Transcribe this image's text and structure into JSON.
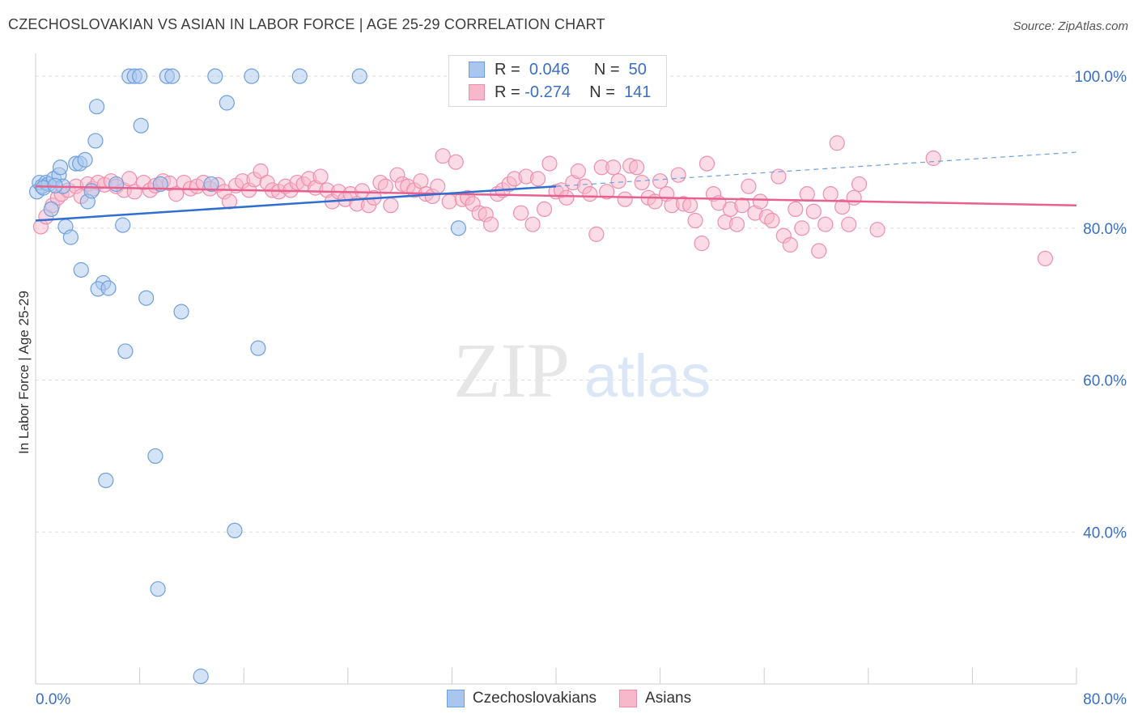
{
  "title": "CZECHOSLOVAKIAN VS ASIAN IN LABOR FORCE | AGE 25-29 CORRELATION CHART",
  "source": "Source: ZipAtlas.com",
  "watermark": {
    "zip": "ZIP",
    "atlas": "atlas"
  },
  "legend_top": [
    {
      "r_label": "R =",
      "r_value": "0.046",
      "n_label": "N =",
      "n_value": "50"
    },
    {
      "r_label": "R =",
      "r_value": "-0.274",
      "n_label": "N =",
      "n_value": "141"
    }
  ],
  "legend_bottom": [
    {
      "label": "Czechoslovakians"
    },
    {
      "label": "Asians"
    }
  ],
  "colors": {
    "czech_fill": "#a9c7ee",
    "czech_stroke": "#6f9fdc",
    "czech_line": "#2f6fd0",
    "asian_fill": "#f7b8cb",
    "asian_stroke": "#ee8fad",
    "asian_line": "#e8608e",
    "tick_text": "#3a6fc4",
    "grid": "#dddddd"
  },
  "chart_data": {
    "type": "scatter",
    "title": "CZECHOSLOVAKIAN VS ASIAN IN LABOR FORCE | AGE 25-29 CORRELATION CHART",
    "xlabel": "",
    "ylabel": "In Labor Force | Age 25-29",
    "xlim": [
      0,
      80
    ],
    "ylim": [
      20,
      103
    ],
    "x_tick_labels": [
      "0.0%",
      "80.0%"
    ],
    "y_tick_labels": [
      "100.0%",
      "80.0%",
      "60.0%",
      "40.0%"
    ],
    "y_ticks": [
      100,
      80,
      60,
      40
    ],
    "grid": true,
    "legend_placement": "top-center",
    "series": [
      {
        "name": "Czechoslovakians",
        "R": 0.046,
        "N": 50,
        "trend": {
          "x": [
            0,
            40
          ],
          "y": [
            81.0,
            85.5
          ]
        },
        "trend_dashed": {
          "x": [
            40,
            80
          ],
          "y": [
            85.5,
            90.0
          ]
        },
        "points": [
          [
            0.1,
            84.8
          ],
          [
            0.3,
            86.0
          ],
          [
            0.5,
            85.5
          ],
          [
            0.8,
            86.0
          ],
          [
            1.0,
            85.8
          ],
          [
            1.2,
            82.5
          ],
          [
            1.4,
            86.5
          ],
          [
            1.8,
            87.0
          ],
          [
            1.9,
            88.0
          ],
          [
            2.3,
            80.2
          ],
          [
            2.7,
            78.8
          ],
          [
            3.1,
            88.5
          ],
          [
            3.4,
            88.5
          ],
          [
            3.8,
            89.0
          ],
          [
            3.5,
            74.5
          ],
          [
            4.0,
            83.5
          ],
          [
            4.3,
            84.9
          ],
          [
            4.6,
            91.5
          ],
          [
            4.7,
            96.0
          ],
          [
            5.2,
            72.8
          ],
          [
            4.8,
            72.0
          ],
          [
            5.6,
            72.1
          ],
          [
            6.2,
            85.8
          ],
          [
            6.7,
            80.4
          ],
          [
            6.9,
            63.8
          ],
          [
            7.2,
            100.0
          ],
          [
            7.6,
            100.0
          ],
          [
            8.0,
            100.0
          ],
          [
            8.1,
            93.5
          ],
          [
            8.5,
            70.8
          ],
          [
            9.2,
            50.0
          ],
          [
            9.4,
            32.5
          ],
          [
            9.6,
            85.8
          ],
          [
            10.1,
            100.0
          ],
          [
            10.5,
            100.0
          ],
          [
            11.2,
            69.0
          ],
          [
            12.7,
            21.0
          ],
          [
            13.5,
            85.8
          ],
          [
            13.8,
            100.0
          ],
          [
            14.7,
            96.5
          ],
          [
            15.3,
            40.2
          ],
          [
            16.6,
            100.0
          ],
          [
            17.1,
            64.2
          ],
          [
            20.3,
            100.0
          ],
          [
            24.9,
            100.0
          ],
          [
            32.5,
            80.0
          ],
          [
            5.4,
            46.8
          ],
          [
            2.1,
            85.5
          ],
          [
            0.6,
            85.3
          ],
          [
            1.5,
            85.6
          ]
        ]
      },
      {
        "name": "Asians",
        "R": -0.274,
        "N": 141,
        "trend": {
          "x": [
            0,
            80
          ],
          "y": [
            85.5,
            83.0
          ]
        },
        "points": [
          [
            0.4,
            80.2
          ],
          [
            0.8,
            81.5
          ],
          [
            1.3,
            83.0
          ],
          [
            1.7,
            84.0
          ],
          [
            2.0,
            84.5
          ],
          [
            2.5,
            85.0
          ],
          [
            3.1,
            85.5
          ],
          [
            3.5,
            84.2
          ],
          [
            4.0,
            85.8
          ],
          [
            4.4,
            85.2
          ],
          [
            4.8,
            86.0
          ],
          [
            5.3,
            85.7
          ],
          [
            5.8,
            86.2
          ],
          [
            6.2,
            85.5
          ],
          [
            6.8,
            85.0
          ],
          [
            7.2,
            86.5
          ],
          [
            7.6,
            84.8
          ],
          [
            8.3,
            86.0
          ],
          [
            8.8,
            85.0
          ],
          [
            9.2,
            85.6
          ],
          [
            9.8,
            86.2
          ],
          [
            10.3,
            85.9
          ],
          [
            10.8,
            84.5
          ],
          [
            11.4,
            86.0
          ],
          [
            11.9,
            85.2
          ],
          [
            12.4,
            85.5
          ],
          [
            12.9,
            86.0
          ],
          [
            13.4,
            85.2
          ],
          [
            14.0,
            85.7
          ],
          [
            14.5,
            84.8
          ],
          [
            14.9,
            83.5
          ],
          [
            15.4,
            85.6
          ],
          [
            15.9,
            86.2
          ],
          [
            16.4,
            85.0
          ],
          [
            16.8,
            86.4
          ],
          [
            17.3,
            87.5
          ],
          [
            17.8,
            86.0
          ],
          [
            18.2,
            85.0
          ],
          [
            18.7,
            84.8
          ],
          [
            19.2,
            85.5
          ],
          [
            19.6,
            85.0
          ],
          [
            20.1,
            86.0
          ],
          [
            20.6,
            85.8
          ],
          [
            21.0,
            86.5
          ],
          [
            21.5,
            85.3
          ],
          [
            21.9,
            86.8
          ],
          [
            22.4,
            85.0
          ],
          [
            22.8,
            83.5
          ],
          [
            23.3,
            84.8
          ],
          [
            23.8,
            83.8
          ],
          [
            24.2,
            84.5
          ],
          [
            24.7,
            83.2
          ],
          [
            25.1,
            84.9
          ],
          [
            25.6,
            83.0
          ],
          [
            26.0,
            84.0
          ],
          [
            26.5,
            86.0
          ],
          [
            26.9,
            85.5
          ],
          [
            27.3,
            83.0
          ],
          [
            27.8,
            87.0
          ],
          [
            28.2,
            85.8
          ],
          [
            28.6,
            85.5
          ],
          [
            29.1,
            85.0
          ],
          [
            29.6,
            86.2
          ],
          [
            30.0,
            84.5
          ],
          [
            30.5,
            84.2
          ],
          [
            30.9,
            85.5
          ],
          [
            31.3,
            89.5
          ],
          [
            31.8,
            83.5
          ],
          [
            32.3,
            88.7
          ],
          [
            32.8,
            83.8
          ],
          [
            33.2,
            84.0
          ],
          [
            33.6,
            83.2
          ],
          [
            34.1,
            82.0
          ],
          [
            34.6,
            81.8
          ],
          [
            35.0,
            80.5
          ],
          [
            35.5,
            84.5
          ],
          [
            35.9,
            85.0
          ],
          [
            36.4,
            85.8
          ],
          [
            36.8,
            86.5
          ],
          [
            37.3,
            82.0
          ],
          [
            37.7,
            86.8
          ],
          [
            38.2,
            80.5
          ],
          [
            38.6,
            86.5
          ],
          [
            39.1,
            82.5
          ],
          [
            39.5,
            88.5
          ],
          [
            40.0,
            84.8
          ],
          [
            40.4,
            85.0
          ],
          [
            40.8,
            84.0
          ],
          [
            41.3,
            86.0
          ],
          [
            41.7,
            87.5
          ],
          [
            42.2,
            85.5
          ],
          [
            42.6,
            84.5
          ],
          [
            43.1,
            79.2
          ],
          [
            43.5,
            88.0
          ],
          [
            43.9,
            84.8
          ],
          [
            44.4,
            88.0
          ],
          [
            44.8,
            86.2
          ],
          [
            45.3,
            83.8
          ],
          [
            45.7,
            88.2
          ],
          [
            46.2,
            88.0
          ],
          [
            46.6,
            86.0
          ],
          [
            47.1,
            84.0
          ],
          [
            47.6,
            83.5
          ],
          [
            48.0,
            86.2
          ],
          [
            48.5,
            84.5
          ],
          [
            48.9,
            83.0
          ],
          [
            49.4,
            87.0
          ],
          [
            49.8,
            83.2
          ],
          [
            50.3,
            83.0
          ],
          [
            50.7,
            81.0
          ],
          [
            51.2,
            78.0
          ],
          [
            51.6,
            88.5
          ],
          [
            52.1,
            84.5
          ],
          [
            52.5,
            83.3
          ],
          [
            53.0,
            80.8
          ],
          [
            53.4,
            82.5
          ],
          [
            53.9,
            80.5
          ],
          [
            54.3,
            83.0
          ],
          [
            54.8,
            85.5
          ],
          [
            55.3,
            82.0
          ],
          [
            55.7,
            83.5
          ],
          [
            56.2,
            81.5
          ],
          [
            56.6,
            81.0
          ],
          [
            57.1,
            86.8
          ],
          [
            57.5,
            79.0
          ],
          [
            58.0,
            77.8
          ],
          [
            58.4,
            82.5
          ],
          [
            58.9,
            80.0
          ],
          [
            59.3,
            84.5
          ],
          [
            59.8,
            82.2
          ],
          [
            60.2,
            77.0
          ],
          [
            60.7,
            80.5
          ],
          [
            61.1,
            84.5
          ],
          [
            61.6,
            91.2
          ],
          [
            62.0,
            82.8
          ],
          [
            62.5,
            80.5
          ],
          [
            62.9,
            84.0
          ],
          [
            63.3,
            85.8
          ],
          [
            64.7,
            79.8
          ],
          [
            69.0,
            89.2
          ],
          [
            77.6,
            76.0
          ]
        ]
      }
    ]
  }
}
